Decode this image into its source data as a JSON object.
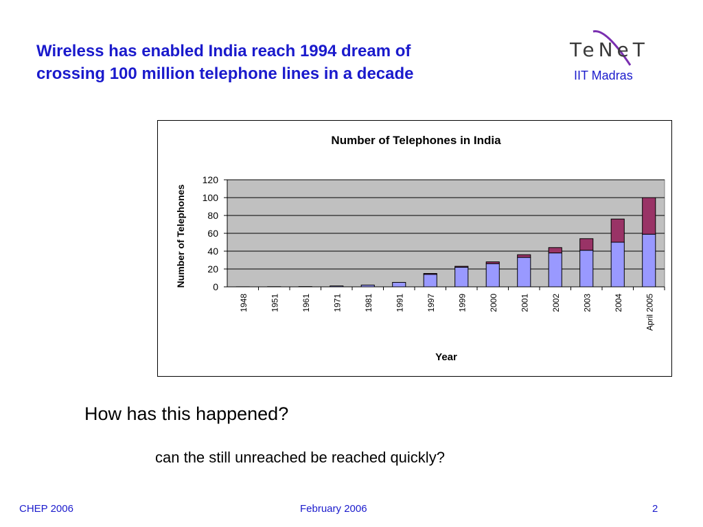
{
  "slide": {
    "title_line1": "Wireless has enabled India reach 1994 dream of",
    "title_line2": "crossing 100 million telephone lines in a decade",
    "logo_text": "TeNeT",
    "logo_subtitle": "IIT Madras",
    "question": "How has this happened?",
    "subquestion": "can the still unreached be reached quickly?",
    "footer_left": "CHEP 2006",
    "footer_center": "February 2006",
    "footer_right": "2"
  },
  "colors": {
    "title": "#1a1acc",
    "series_lower": "#9999ff",
    "series_upper": "#993366",
    "plot_background": "#c0c0c0"
  },
  "chart_data": {
    "type": "bar",
    "stacked": true,
    "title": "Number of Telephones in India",
    "xlabel": "Year",
    "ylabel": "Number of Telephones",
    "ylim": [
      0,
      120
    ],
    "yticks": [
      0,
      20,
      40,
      60,
      80,
      100,
      120
    ],
    "grid": true,
    "legend": "none",
    "categories": [
      "1948",
      "1951",
      "1961",
      "1971",
      "1981",
      "1991",
      "1997",
      "1999",
      "2000",
      "2001",
      "2002",
      "2003",
      "2004",
      "April 2005"
    ],
    "series": [
      {
        "values": [
          0.1,
          0.2,
          0.3,
          1,
          2,
          5,
          14,
          22,
          26,
          33,
          38,
          41,
          50,
          59
        ]
      },
      {
        "values": [
          0,
          0,
          0,
          0,
          0,
          0,
          1,
          1,
          2,
          3,
          6,
          13,
          26,
          41
        ]
      }
    ]
  }
}
